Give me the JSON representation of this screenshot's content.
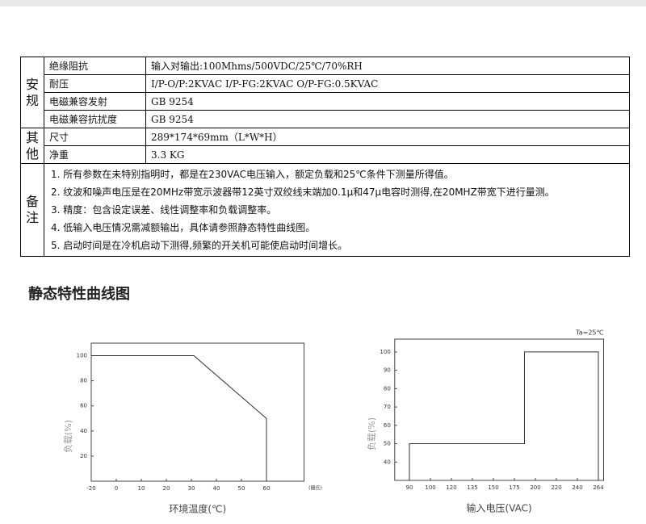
{
  "safety": {
    "group": "安规",
    "rows": [
      [
        "绝缘阻抗",
        "输入对输出:100Mhms/500VDC/25℃/70%RH"
      ],
      [
        "耐压",
        "I/P-O/P:2KVAC I/P-FG:2KVAC O/P-FG:0.5KVAC"
      ],
      [
        "电磁兼容发射",
        "GB 9254"
      ],
      [
        "电磁兼容抗扰度",
        "GB 9254"
      ]
    ]
  },
  "other": {
    "group": "其他",
    "rows": [
      [
        "尺寸",
        "289*174*69mm（L*W*H）"
      ],
      [
        "净重",
        "3.3 KG"
      ]
    ]
  },
  "notes": {
    "label": "备注",
    "items": [
      "1. 所有参数在未特别指明时，都是在230VAC电压输入，额定负载和25℃条件下测量所得值。",
      "2. 纹波和噪声电压是在20MHz带宽示波器带12英寸双绞线末端加0.1μ和47μ电容时测得,在20MHZ带宽下进行量测。",
      "3. 精度：包含设定误差、线性调整率和负载调整率。",
      "4. 低输入电压情况需减额输出，具体请参照静态特性曲线图。",
      "5. 启动时间是在冷机启动下测得,频繁的开关机可能使启动时间增长。"
    ]
  },
  "section_title": "静态特性曲线图",
  "charts": [
    {
      "type": "line",
      "x_label": "环境温度(℃)",
      "y_label": "负载(%)",
      "x_unit": "(摄氏)",
      "xlim": [
        -20,
        75
      ],
      "ylim": [
        0,
        110
      ],
      "xticks": [
        -20,
        0,
        10,
        20,
        30,
        40,
        50,
        60
      ],
      "yticks": [
        20,
        40,
        60,
        80,
        100
      ],
      "x": [
        -20,
        31,
        60,
        60
      ],
      "y": [
        100,
        100,
        50,
        0
      ]
    },
    {
      "type": "line",
      "x_label": "输入电压(VAC)",
      "y_label": "负载(%)",
      "annotation": "Ta=25℃",
      "xlim": [
        83,
        270
      ],
      "ylim": [
        30,
        107
      ],
      "xticks": [
        90,
        100,
        120,
        135,
        150,
        175,
        200,
        220,
        240,
        264
      ],
      "yticks": [
        40,
        50,
        60,
        70,
        80,
        90,
        100
      ],
      "x": [
        90,
        90,
        187,
        187,
        264,
        264
      ],
      "y": [
        30,
        50,
        50,
        100,
        100,
        30
      ]
    }
  ]
}
